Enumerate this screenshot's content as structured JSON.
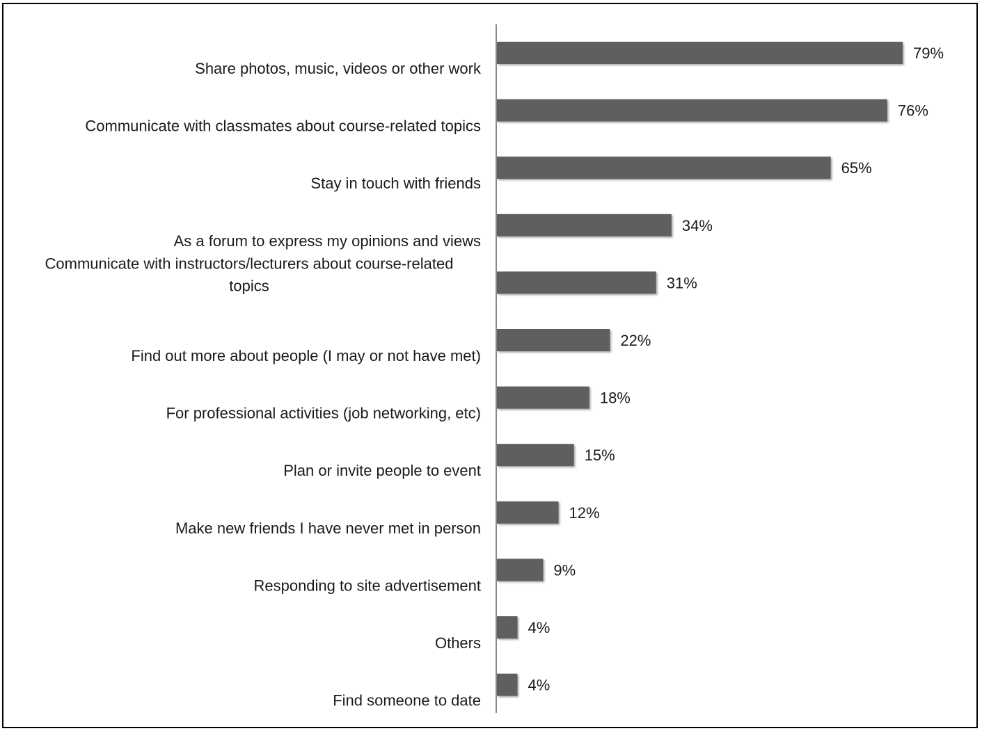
{
  "chart_data": {
    "type": "bar",
    "orientation": "horizontal",
    "title": "",
    "xlabel": "",
    "ylabel": "",
    "categories": [
      "Share photos, music, videos or other work",
      "Communicate with classmates about course-related topics",
      "Stay in touch with friends",
      "As a forum to express my opinions and views",
      "Communicate with instructors/lecturers about course-related topics",
      "Find out more about people (I may or not have met)",
      "For professional activities (job networking, etc)",
      "Plan or invite people to event",
      "Make new friends I have never met in person",
      "Responding to site advertisement",
      "Others",
      "Find someone to date"
    ],
    "label_lines": [
      [
        "Share photos, music, videos or other work"
      ],
      [
        "Communicate with classmates about course-related topics"
      ],
      [
        "Stay in touch with friends"
      ],
      [
        "As a forum to express my opinions and views"
      ],
      [
        "Communicate with instructors/lecturers about course-related",
        "topics"
      ],
      [
        "Find out more about people (I may or not have met)"
      ],
      [
        "For professional activities (job networking, etc)"
      ],
      [
        "Plan or invite people to event"
      ],
      [
        "Make new friends I have never met in person"
      ],
      [
        "Responding to site advertisement"
      ],
      [
        "Others"
      ],
      [
        "Find someone to date"
      ]
    ],
    "values": [
      79,
      76,
      65,
      34,
      31,
      22,
      18,
      15,
      12,
      9,
      4,
      4
    ],
    "value_labels": [
      "79%",
      "76%",
      "65%",
      "34%",
      "31%",
      "22%",
      "18%",
      "15%",
      "12%",
      "9%",
      "4%",
      "4%"
    ],
    "xlim": [
      0,
      79
    ],
    "grid": false,
    "legend": "none",
    "bar_color": "#5f5f5f",
    "axis_color": "#888888"
  }
}
